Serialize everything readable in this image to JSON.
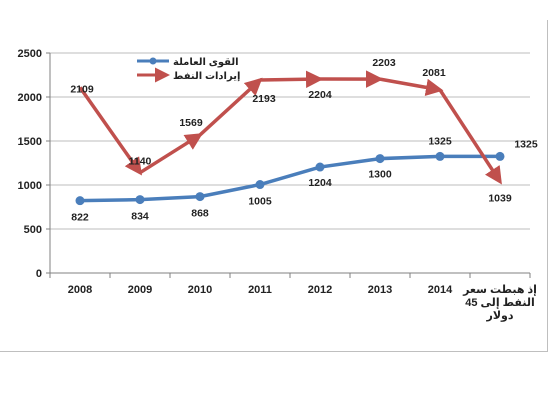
{
  "chart_data": {
    "type": "line",
    "categories": [
      "2008",
      "2009",
      "2010",
      "2011",
      "2012",
      "2013",
      "2014",
      "إذ هبطت سعر النفط إلى 45 دولار"
    ],
    "category_lines": [
      [
        "2008"
      ],
      [
        "2009"
      ],
      [
        "2010"
      ],
      [
        "2011"
      ],
      [
        "2012"
      ],
      [
        "2013"
      ],
      [
        "2014"
      ],
      [
        "إذ هبطت سعر",
        "النفط إلى 45",
        "دولار"
      ]
    ],
    "ylim": [
      0,
      2500
    ],
    "yticks": [
      0,
      500,
      1000,
      1500,
      2000,
      2500
    ],
    "grid": "horizontal",
    "legend_position": "top-left",
    "series": [
      {
        "name": "القوى العاملة",
        "values": [
          822,
          834,
          868,
          1005,
          1204,
          1300,
          1325,
          1325
        ],
        "color": "#4a7ebb",
        "marker": "circle"
      },
      {
        "name": "إيرادات النفط",
        "values": [
          2109,
          1140,
          1569,
          2193,
          2204,
          2203,
          2081,
          1039
        ],
        "color": "#c0504d",
        "marker": "arrow"
      }
    ]
  }
}
